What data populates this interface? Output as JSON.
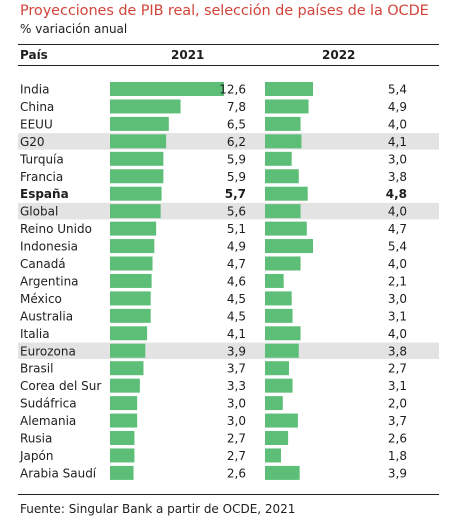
{
  "chart_data": {
    "type": "bar",
    "title": "Proyecciones de PIB real, selección de países de la OCDE",
    "subtitle": "% variación anual",
    "column_header": "País",
    "series": [
      {
        "name": "2021",
        "values": [
          12.6,
          7.8,
          6.5,
          6.2,
          5.9,
          5.9,
          5.7,
          5.6,
          5.1,
          4.9,
          4.7,
          4.6,
          4.5,
          4.5,
          4.1,
          3.9,
          3.7,
          3.3,
          3.0,
          3.0,
          2.7,
          2.7,
          2.6
        ],
        "labels": [
          "12,6",
          "7,8",
          "6,5",
          "6,2",
          "5,9",
          "5,9",
          "5,7",
          "5,6",
          "5,1",
          "4,9",
          "4,7",
          "4,6",
          "4,5",
          "4,5",
          "4,1",
          "3,9",
          "3,7",
          "3,3",
          "3,0",
          "3,0",
          "2,7",
          "2,7",
          "2,6"
        ]
      },
      {
        "name": "2022",
        "values": [
          5.4,
          4.9,
          4.0,
          4.1,
          3.0,
          3.8,
          4.8,
          4.0,
          4.7,
          5.4,
          4.0,
          2.1,
          3.0,
          3.1,
          4.0,
          3.8,
          2.7,
          3.1,
          2.0,
          3.7,
          2.6,
          1.8,
          3.9
        ],
        "labels": [
          "5,4",
          "4,9",
          "4,0",
          "4,1",
          "3,0",
          "3,8",
          "4,8",
          "4,0",
          "4,7",
          "5,4",
          "4,0",
          "2,1",
          "3,0",
          "3,1",
          "4,0",
          "3,8",
          "2,7",
          "3,1",
          "2,0",
          "3,7",
          "2,6",
          "1,8",
          "3,9"
        ]
      }
    ],
    "categories": [
      "India",
      "China",
      "EEUU",
      "G20",
      "Turquía",
      "Francia",
      "España",
      "Global",
      "Reino Unido",
      "Indonesia",
      "Canadá",
      "Argentina",
      "México",
      "Australia",
      "Italia",
      "Eurozona",
      "Brasil",
      "Corea del Sur",
      "Sudáfrica",
      "Alemania",
      "Rusia",
      "Japón",
      "Arabia Saudí"
    ],
    "highlighted_rows": [
      "G20",
      "Global",
      "Eurozona"
    ],
    "bold_rows": [
      "España"
    ],
    "colors": {
      "bar": "#5dbe78",
      "highlight_band": "#e3e3e3",
      "title": "#d2453a"
    },
    "grid": false,
    "source": "Fuente: Singular Bank a partir de OCDE, 2021"
  }
}
